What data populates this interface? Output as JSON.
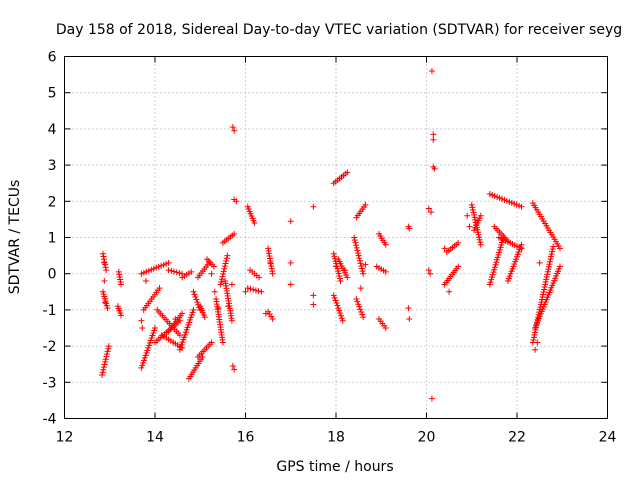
{
  "chart_data": {
    "type": "scatter",
    "title": "Day 158 of 2018, Sidereal Day-to-day VTEC variation (SDTVAR) for receiver seyg",
    "xlabel": "GPS time / hours",
    "ylabel": "SDTVAR / TECUs",
    "xlim": [
      12,
      24
    ],
    "ylim": [
      -4,
      6
    ],
    "xticks": [
      12,
      14,
      16,
      18,
      20,
      22,
      24
    ],
    "yticks": [
      -4,
      -3,
      -2,
      -1,
      0,
      1,
      2,
      3,
      4,
      5,
      6
    ],
    "grid": true,
    "marker": "+",
    "color": "#ff0000",
    "segments": [
      {
        "x0": 12.85,
        "x1": 12.92,
        "y0": 0.55,
        "y1": 0.1
      },
      {
        "x0": 12.85,
        "x1": 12.95,
        "y0": -0.5,
        "y1": -0.95
      },
      {
        "x0": 12.83,
        "x1": 12.98,
        "y0": -2.8,
        "y1": -2.0
      },
      {
        "x0": 13.2,
        "x1": 13.25,
        "y0": 0.05,
        "y1": -0.3
      },
      {
        "x0": 13.18,
        "x1": 13.25,
        "y0": -0.9,
        "y1": -1.15
      },
      {
        "x0": 13.7,
        "x1": 14.0,
        "y0": -2.6,
        "y1": -1.5
      },
      {
        "x0": 13.75,
        "x1": 14.1,
        "y0": -1.0,
        "y1": -0.4
      },
      {
        "x0": 13.7,
        "x1": 14.3,
        "y0": 0.0,
        "y1": 0.3
      },
      {
        "x0": 14.05,
        "x1": 14.55,
        "y0": -1.0,
        "y1": -1.7
      },
      {
        "x0": 14.0,
        "x1": 14.55,
        "y0": -1.9,
        "y1": -1.3
      },
      {
        "x0": 14.15,
        "x1": 14.6,
        "y0": -1.7,
        "y1": -2.05
      },
      {
        "x0": 14.55,
        "x1": 14.85,
        "y0": -2.1,
        "y1": -1.0
      },
      {
        "x0": 14.3,
        "x1": 14.6,
        "y0": -1.6,
        "y1": -1.1
      },
      {
        "x0": 14.3,
        "x1": 14.6,
        "y0": 0.1,
        "y1": 0.0
      },
      {
        "x0": 14.6,
        "x1": 14.8,
        "y0": -0.1,
        "y1": 0.05
      },
      {
        "x0": 14.75,
        "x1": 15.05,
        "y0": -2.9,
        "y1": -2.3
      },
      {
        "x0": 14.95,
        "x1": 15.25,
        "y0": -2.3,
        "y1": -1.9
      },
      {
        "x0": 14.85,
        "x1": 15.0,
        "y0": -0.5,
        "y1": -1.0
      },
      {
        "x0": 15.0,
        "x1": 15.1,
        "y0": -0.9,
        "y1": -1.2
      },
      {
        "x0": 14.95,
        "x1": 15.2,
        "y0": -0.1,
        "y1": 0.3
      },
      {
        "x0": 15.15,
        "x1": 15.3,
        "y0": 0.4,
        "y1": 0.2
      },
      {
        "x0": 15.35,
        "x1": 15.5,
        "y0": -0.7,
        "y1": -1.9
      },
      {
        "x0": 15.55,
        "x1": 15.7,
        "y0": -0.2,
        "y1": -1.3
      },
      {
        "x0": 15.45,
        "x1": 15.6,
        "y0": -0.3,
        "y1": 0.5
      },
      {
        "x0": 15.5,
        "x1": 15.75,
        "y0": 0.85,
        "y1": 1.1
      },
      {
        "x0": 16.05,
        "x1": 16.2,
        "y0": 1.85,
        "y1": 1.4
      },
      {
        "x0": 16.05,
        "x1": 16.35,
        "y0": -0.4,
        "y1": -0.5
      },
      {
        "x0": 16.1,
        "x1": 16.3,
        "y0": 0.1,
        "y1": -0.1
      },
      {
        "x0": 16.5,
        "x1": 16.6,
        "y0": 0.7,
        "y1": 0.0
      },
      {
        "x0": 16.5,
        "x1": 16.6,
        "y0": -1.05,
        "y1": -1.25
      },
      {
        "x0": 17.95,
        "x1": 18.25,
        "y0": 2.5,
        "y1": 2.8
      },
      {
        "x0": 17.95,
        "x1": 18.1,
        "y0": 0.55,
        "y1": -0.2
      },
      {
        "x0": 17.95,
        "x1": 18.15,
        "y0": -0.6,
        "y1": -1.3
      },
      {
        "x0": 18.05,
        "x1": 18.25,
        "y0": 0.4,
        "y1": -0.1
      },
      {
        "x0": 18.4,
        "x1": 18.6,
        "y0": 1.0,
        "y1": 0.0
      },
      {
        "x0": 18.45,
        "x1": 18.65,
        "y0": 1.55,
        "y1": 1.9
      },
      {
        "x0": 18.45,
        "x1": 18.6,
        "y0": -0.7,
        "y1": -1.2
      },
      {
        "x0": 18.95,
        "x1": 19.1,
        "y0": 1.1,
        "y1": 0.8
      },
      {
        "x0": 18.9,
        "x1": 19.1,
        "y0": 0.2,
        "y1": 0.05
      },
      {
        "x0": 18.95,
        "x1": 19.1,
        "y0": -1.25,
        "y1": -1.5
      },
      {
        "x0": 20.4,
        "x1": 20.7,
        "y0": -0.3,
        "y1": 0.2
      },
      {
        "x0": 20.45,
        "x1": 20.7,
        "y0": 0.6,
        "y1": 0.85
      },
      {
        "x0": 21.0,
        "x1": 21.2,
        "y0": 1.9,
        "y1": 0.8
      },
      {
        "x0": 21.05,
        "x1": 21.2,
        "y0": 1.2,
        "y1": 1.6
      },
      {
        "x0": 21.4,
        "x1": 21.7,
        "y0": -0.3,
        "y1": 1.0
      },
      {
        "x0": 21.4,
        "x1": 22.1,
        "y0": 2.2,
        "y1": 1.85
      },
      {
        "x0": 21.5,
        "x1": 21.8,
        "y0": 1.3,
        "y1": 0.9
      },
      {
        "x0": 21.6,
        "x1": 22.1,
        "y0": 1.0,
        "y1": 0.7
      },
      {
        "x0": 21.8,
        "x1": 22.1,
        "y0": -0.2,
        "y1": 0.8
      },
      {
        "x0": 22.35,
        "x1": 22.95,
        "y0": 1.95,
        "y1": 0.7
      },
      {
        "x0": 22.35,
        "x1": 22.8,
        "y0": -1.9,
        "y1": 0.75
      },
      {
        "x0": 22.4,
        "x1": 22.95,
        "y0": -1.5,
        "y1": 0.2
      }
    ],
    "points": [
      [
        12.88,
        0.3
      ],
      [
        12.88,
        -0.2
      ],
      [
        12.9,
        -0.8
      ],
      [
        13.8,
        -0.2
      ],
      [
        13.7,
        -1.3
      ],
      [
        13.72,
        -1.5
      ],
      [
        14.0,
        -1.9
      ],
      [
        14.45,
        -1.25
      ],
      [
        15.25,
        0.0
      ],
      [
        15.32,
        -0.5
      ],
      [
        15.4,
        -0.95
      ],
      [
        15.62,
        -0.9
      ],
      [
        15.7,
        -0.3
      ],
      [
        15.72,
        4.05
      ],
      [
        15.75,
        3.95
      ],
      [
        15.75,
        2.05
      ],
      [
        15.8,
        2.0
      ],
      [
        15.72,
        -2.55
      ],
      [
        15.75,
        -2.65
      ],
      [
        16.0,
        -0.5
      ],
      [
        16.45,
        -1.1
      ],
      [
        16.55,
        0.3
      ],
      [
        17.0,
        1.45
      ],
      [
        17.0,
        0.3
      ],
      [
        17.0,
        -0.3
      ],
      [
        17.5,
        1.85
      ],
      [
        17.5,
        -0.6
      ],
      [
        17.5,
        -0.85
      ],
      [
        18.0,
        0.2
      ],
      [
        18.2,
        0.1
      ],
      [
        18.55,
        -0.4
      ],
      [
        18.65,
        0.25
      ],
      [
        19.6,
        1.3
      ],
      [
        19.62,
        1.25
      ],
      [
        19.6,
        -0.95
      ],
      [
        19.62,
        -1.25
      ],
      [
        20.05,
        1.8
      ],
      [
        20.1,
        1.7
      ],
      [
        20.05,
        0.1
      ],
      [
        20.08,
        0.0
      ],
      [
        20.12,
        5.6
      ],
      [
        20.15,
        3.85
      ],
      [
        20.15,
        3.7
      ],
      [
        20.15,
        2.95
      ],
      [
        20.18,
        2.9
      ],
      [
        20.12,
        -3.45
      ],
      [
        20.4,
        0.7
      ],
      [
        20.5,
        -0.5
      ],
      [
        20.9,
        1.6
      ],
      [
        20.95,
        1.3
      ],
      [
        22.4,
        -2.1
      ],
      [
        22.45,
        -1.9
      ],
      [
        22.5,
        0.3
      ]
    ]
  }
}
